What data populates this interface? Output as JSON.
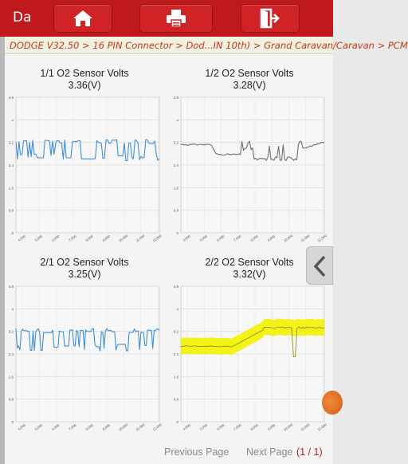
{
  "app_label": "Da",
  "toolbar": {
    "home_icon": "home-icon",
    "print_icon": "printer-icon",
    "exit_icon": "exit-icon"
  },
  "breadcrumb": "DODGE V32.50 > 16 PIN Connector > Dod...IN 10th) > Grand Caravan/Caravan > PCM",
  "colors": {
    "toolbar": "#c0191c",
    "breadcrumb_text": "#c13a12",
    "sensor_line": "#3c8fd6",
    "gray_line": "#6f6f78",
    "highlight": "#f2f200"
  },
  "charts": [
    {
      "title": "1/1 O2 Sensor Volts",
      "value": "3.36(V)",
      "y_ticks": [
        "4.8",
        "4",
        "3.2",
        "2.4",
        "1.6",
        "0.8",
        "0"
      ],
      "x_ticks": [
        "4,000",
        "5,000",
        "6,000",
        "7,000",
        "8,000",
        "9,000",
        "10,000",
        "11,000",
        "12,000"
      ]
    },
    {
      "title": "1/2 O2 Sensor Volts",
      "value": "3.28(V)",
      "y_ticks": [
        "4.8",
        "4",
        "3.2",
        "2.4",
        "1.6",
        "0.8",
        "0"
      ],
      "x_ticks": [
        "4,000",
        "5,000",
        "6,000",
        "7,000",
        "8,000",
        "9,000",
        "10,000",
        "11,000",
        "12,000"
      ]
    },
    {
      "title": "2/1 O2 Sensor Volts",
      "value": "3.25(V)",
      "y_ticks": [
        "4.8",
        "4",
        "3.2",
        "2.4",
        "1.6",
        "0.8",
        "0"
      ],
      "x_ticks": [
        "4,000",
        "5,000",
        "6,000",
        "7,000",
        "8,000",
        "9,000",
        "10,000",
        "11,000",
        "12,000"
      ]
    },
    {
      "title": "2/2 O2 Sensor Volts",
      "value": "3.32(V)",
      "y_ticks": [
        "4.8",
        "4",
        "3.2",
        "2.4",
        "1.6",
        "0.8",
        "0"
      ],
      "x_ticks": [
        "4,000",
        "5,000",
        "6,000",
        "7,000",
        "8,000",
        "9,000",
        "10,000",
        "11,000",
        "12,000"
      ]
    }
  ],
  "pager": {
    "previous": "Previous Page",
    "next": "Next Page",
    "count": "(1 / 1)"
  }
}
